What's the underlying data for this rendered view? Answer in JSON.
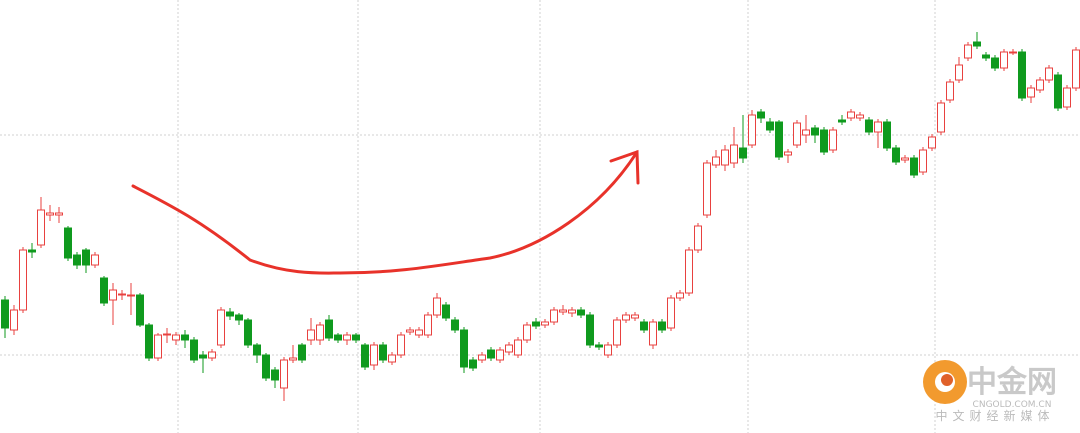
{
  "chart_data": {
    "type": "candlestick",
    "up_color": "#e8413f",
    "down_color": "#0f9a1e",
    "ylim": [
      0,
      433
    ],
    "open": [
      133,
      103,
      123,
      183,
      188,
      218,
      218,
      205,
      178,
      183,
      168,
      155,
      133,
      138,
      137,
      138,
      108,
      75,
      98,
      93,
      98,
      93,
      78,
      75,
      88,
      121,
      118,
      113,
      88,
      78,
      63,
      45,
      73,
      88,
      93,
      93,
      113,
      98,
      93,
      98,
      88,
      68,
      88,
      71,
      78,
      101,
      98,
      98,
      118,
      128,
      113,
      103,
      73,
      73,
      83,
      73,
      81,
      78,
      93,
      111,
      108,
      111,
      121,
      120,
      123,
      118,
      88,
      78,
      88,
      113,
      115,
      111,
      88,
      111,
      105,
      135,
      140,
      183,
      218,
      268,
      268,
      270,
      285,
      288,
      321,
      311,
      311,
      278,
      288,
      298,
      305,
      303,
      283,
      313,
      315,
      315,
      313,
      301,
      311,
      285,
      273,
      275,
      261,
      285,
      301,
      333,
      353,
      375,
      391,
      378,
      375,
      365,
      381,
      381,
      336,
      343,
      353,
      358,
      326,
      345
    ],
    "high": [
      137,
      128,
      186,
      190,
      236,
      228,
      226,
      207,
      181,
      185,
      181,
      157,
      150,
      143,
      150,
      140,
      110,
      100,
      105,
      101,
      103,
      96,
      82,
      84,
      126,
      125,
      120,
      115,
      90,
      80,
      66,
      76,
      88,
      90,
      115,
      111,
      118,
      100,
      101,
      100,
      90,
      91,
      91,
      81,
      101,
      106,
      106,
      121,
      140,
      131,
      116,
      106,
      76,
      81,
      86,
      86,
      91,
      96,
      111,
      115,
      114,
      126,
      128,
      126,
      126,
      121,
      91,
      91,
      116,
      121,
      121,
      114,
      114,
      114,
      138,
      143,
      186,
      210,
      273,
      283,
      288,
      306,
      318,
      323,
      324,
      315,
      313,
      284,
      313,
      318,
      308,
      306,
      306,
      318,
      324,
      321,
      316,
      314,
      314,
      288,
      278,
      278,
      286,
      299,
      333,
      354,
      376,
      391,
      401,
      381,
      378,
      384,
      384,
      384,
      348,
      356,
      368,
      361,
      348,
      386
    ],
    "low": [
      95,
      98,
      120,
      175,
      185,
      212,
      210,
      172,
      164,
      160,
      165,
      127,
      108,
      133,
      118,
      106,
      72,
      72,
      90,
      88,
      85,
      70,
      60,
      72,
      85,
      113,
      108,
      85,
      70,
      52,
      45,
      32,
      70,
      70,
      88,
      88,
      92,
      90,
      88,
      90,
      63,
      63,
      70,
      68,
      75,
      98,
      95,
      95,
      115,
      112,
      100,
      60,
      62,
      70,
      72,
      70,
      78,
      75,
      90,
      104,
      105,
      108,
      118,
      116,
      115,
      85,
      83,
      75,
      85,
      110,
      112,
      100,
      84,
      100,
      102,
      132,
      137,
      180,
      215,
      265,
      262,
      265,
      270,
      285,
      310,
      300,
      273,
      270,
      285,
      290,
      290,
      278,
      280,
      308,
      312,
      312,
      298,
      285,
      282,
      268,
      270,
      255,
      258,
      282,
      298,
      330,
      350,
      372,
      384,
      372,
      362,
      362,
      378,
      332,
      330,
      340,
      350,
      322,
      323,
      342
    ],
    "close": [
      105,
      123,
      183,
      181,
      223,
      220,
      220,
      175,
      168,
      168,
      178,
      130,
      143,
      139,
      138,
      108,
      75,
      98,
      99,
      98,
      93,
      73,
      75,
      81,
      123,
      117,
      113,
      88,
      78,
      55,
      53,
      73,
      75,
      73,
      103,
      108,
      95,
      93,
      98,
      93,
      66,
      88,
      73,
      78,
      98,
      103,
      103,
      118,
      135,
      115,
      103,
      66,
      65,
      78,
      75,
      83,
      88,
      93,
      108,
      107,
      111,
      123,
      123,
      123,
      118,
      88,
      86,
      88,
      113,
      118,
      118,
      103,
      111,
      103,
      135,
      140,
      183,
      207,
      270,
      276,
      283,
      288,
      275,
      318,
      315,
      303,
      276,
      281,
      310,
      303,
      298,
      281,
      303,
      311,
      321,
      318,
      301,
      311,
      285,
      271,
      275,
      258,
      283,
      296,
      330,
      351,
      368,
      388,
      387,
      375,
      365,
      381,
      381,
      335,
      345,
      353,
      365,
      325,
      345,
      383
    ]
  },
  "watermark": {
    "brand": "中金网",
    "domain": "CNGOLD.COM.CN",
    "slogan": "中文财经新媒体"
  }
}
